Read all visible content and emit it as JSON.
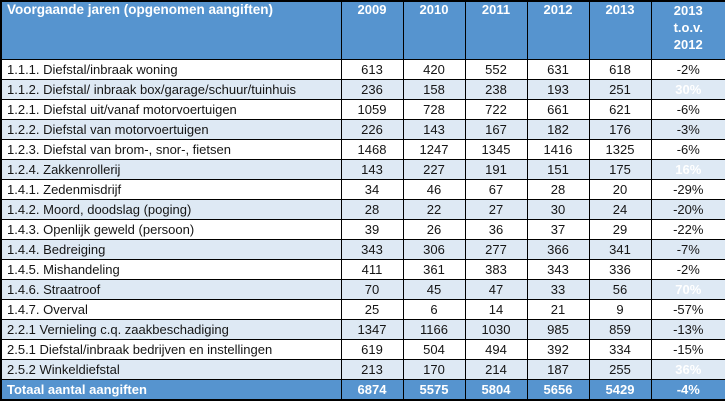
{
  "colors": {
    "header_blue": "#5694CF",
    "alt_row_blue": "#DEE9F4",
    "highlight_red": "#FE0000",
    "border": "#000000",
    "body_text": "#151515",
    "header_text": "#FFFFFF"
  },
  "chart_data": {
    "type": "table",
    "title": "Voorgaande jaren (opgenomen aangiften)",
    "columns": [
      "2009",
      "2010",
      "2011",
      "2012",
      "2013",
      "2013 t.o.v. 2012"
    ],
    "delta_header_lines": [
      "2013",
      "t.o.v.",
      "2012"
    ],
    "rows": [
      {
        "label": "1.1.1. Diefstal/inbraak woning",
        "values": [
          613,
          420,
          552,
          631,
          618
        ],
        "delta": "-2%",
        "highlight": false
      },
      {
        "label": "1.1.2. Diefstal/ inbraak box/garage/schuur/tuinhuis",
        "values": [
          236,
          158,
          238,
          193,
          251
        ],
        "delta": "30%",
        "highlight": true
      },
      {
        "label": "1.2.1. Diefstal uit/vanaf motorvoertuigen",
        "values": [
          1059,
          728,
          722,
          661,
          621
        ],
        "delta": "-6%",
        "highlight": false
      },
      {
        "label": "1.2.2. Diefstal van motorvoertuigen",
        "values": [
          226,
          143,
          167,
          182,
          176
        ],
        "delta": "-3%",
        "highlight": false
      },
      {
        "label": "1.2.3. Diefstal van brom-, snor-, fietsen",
        "values": [
          1468,
          1247,
          1345,
          1416,
          1325
        ],
        "delta": "-6%",
        "highlight": false
      },
      {
        "label": "1.2.4. Zakkenrollerij",
        "values": [
          143,
          227,
          191,
          151,
          175
        ],
        "delta": "16%",
        "highlight": true
      },
      {
        "label": "1.4.1. Zedenmisdrijf",
        "values": [
          34,
          46,
          67,
          28,
          20
        ],
        "delta": "-29%",
        "highlight": false
      },
      {
        "label": "1.4.2. Moord, doodslag (poging)",
        "values": [
          28,
          22,
          27,
          30,
          24
        ],
        "delta": "-20%",
        "highlight": false
      },
      {
        "label": "1.4.3. Openlijk geweld (persoon)",
        "values": [
          39,
          26,
          36,
          37,
          29
        ],
        "delta": "-22%",
        "highlight": false
      },
      {
        "label": "1.4.4. Bedreiging",
        "values": [
          343,
          306,
          277,
          366,
          341
        ],
        "delta": "-7%",
        "highlight": false
      },
      {
        "label": "1.4.5. Mishandeling",
        "values": [
          411,
          361,
          383,
          343,
          336
        ],
        "delta": "-2%",
        "highlight": false
      },
      {
        "label": "1.4.6. Straatroof",
        "values": [
          70,
          45,
          47,
          33,
          56
        ],
        "delta": "70%",
        "highlight": true
      },
      {
        "label": "1.4.7. Overval",
        "values": [
          25,
          6,
          14,
          21,
          9
        ],
        "delta": "-57%",
        "highlight": false
      },
      {
        "label": "2.2.1 Vernieling c.q. zaakbeschadiging",
        "values": [
          1347,
          1166,
          1030,
          985,
          859
        ],
        "delta": "-13%",
        "highlight": false
      },
      {
        "label": "2.5.1 Diefstal/inbraak bedrijven en instellingen",
        "values": [
          619,
          504,
          494,
          392,
          334
        ],
        "delta": "-15%",
        "highlight": false
      },
      {
        "label": "2.5.2 Winkeldiefstal",
        "values": [
          213,
          170,
          214,
          187,
          255
        ],
        "delta": "36%",
        "highlight": true
      }
    ],
    "total_row": {
      "label": "Totaal aantal aangiften",
      "values": [
        6874,
        5575,
        5804,
        5656,
        5429
      ],
      "delta": "-4%"
    }
  }
}
